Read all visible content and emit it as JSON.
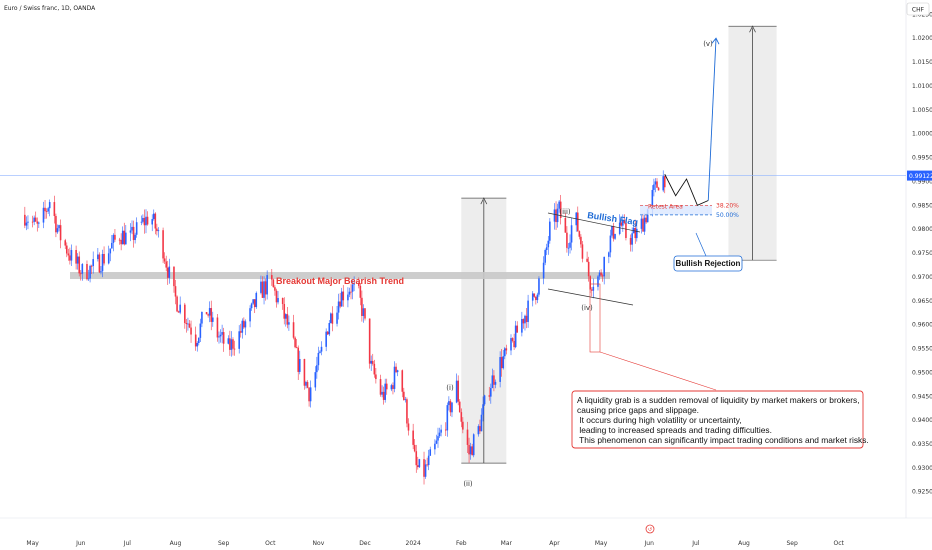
{
  "header": {
    "symbol": "Euro / Swiss franc, 1D, OANDA",
    "currency": "CHF"
  },
  "price_tag": {
    "value": 0.99122,
    "label": "0.99122"
  },
  "annotations": {
    "breakout": "Breakout Major Bearish Trend",
    "bullish_flag": "Bullish Flag",
    "retest": "Retest Area",
    "fib1": "38.20%",
    "fib2": "50.00%",
    "bullish_rejection": "Bullish Rejection",
    "waves": {
      "i": "(i)",
      "ii": "(ii)",
      "iii": "(iii)",
      "iv": "(iv)",
      "v": "(v)"
    },
    "note_lines": [
      "A liquidity grab is a sudden removal of liquidity by market makers or brokers,",
      "causing price gaps and slippage.",
      " It occurs during high volatility or uncertainty,",
      " leading to increased spreads and trading difficulties.",
      " This phenomenon can significantly impact trading conditions and market risks."
    ]
  },
  "colors": {
    "up": "#2962ff",
    "down": "#f23645",
    "accent": "#1e6bd6",
    "note_border": "#e53935"
  },
  "chart_data": {
    "type": "candlestick",
    "title": "Euro / Swiss franc, 1D, OANDA",
    "y_axis": {
      "position": "right",
      "min": 0.9195,
      "max": 1.028,
      "ticks": [
        0.925,
        0.93,
        0.935,
        0.94,
        0.945,
        0.95,
        0.955,
        0.96,
        0.965,
        0.97,
        0.975,
        0.98,
        0.985,
        0.99,
        0.995,
        1.0,
        1.005,
        1.01,
        1.015,
        1.02,
        1.025
      ],
      "tick_labels": [
        "0.92500",
        "0.93000",
        "0.93500",
        "0.94000",
        "0.94500",
        "0.95000",
        "0.95500",
        "0.96000",
        "0.96500",
        "0.97000",
        "0.97500",
        "0.98000",
        "0.98500",
        "0.99000",
        "0.99500",
        "1.00000",
        "1.00500",
        "1.01000",
        "1.01500",
        "1.02000",
        "1.02500"
      ]
    },
    "x_axis": {
      "labels": [
        "May",
        "Jun",
        "Jul",
        "Aug",
        "Sep",
        "Oct",
        "Nov",
        "Dec",
        "2024",
        "Feb",
        "Mar",
        "Apr",
        "May",
        "Jun",
        "Jul",
        "Aug",
        "Sep",
        "Oct"
      ],
      "dates": [
        "2023-05-01",
        "2023-06-01",
        "2023-07-01",
        "2023-08-01",
        "2023-09-01",
        "2023-10-01",
        "2023-11-01",
        "2023-12-01",
        "2024-01-01",
        "2024-02-01",
        "2024-03-01",
        "2024-04-01",
        "2024-05-01",
        "2024-06-01",
        "2024-07-01",
        "2024-08-01",
        "2024-09-01",
        "2024-10-01"
      ]
    },
    "path": [
      [
        "2023-04-26",
        0.983
      ],
      [
        "2023-05-05",
        0.98
      ],
      [
        "2023-05-12",
        0.986
      ],
      [
        "2023-05-18",
        0.979
      ],
      [
        "2023-05-26",
        0.974
      ],
      [
        "2023-06-02",
        0.971
      ],
      [
        "2023-06-09",
        0.972
      ],
      [
        "2023-06-16",
        0.974
      ],
      [
        "2023-06-26",
        0.979
      ],
      [
        "2023-07-03",
        0.978
      ],
      [
        "2023-07-10",
        0.981
      ],
      [
        "2023-07-16",
        0.983
      ],
      [
        "2023-07-24",
        0.976
      ],
      [
        "2023-07-31",
        0.966
      ],
      [
        "2023-08-07",
        0.962
      ],
      [
        "2023-08-14",
        0.957
      ],
      [
        "2023-08-21",
        0.963
      ],
      [
        "2023-08-28",
        0.958
      ],
      [
        "2023-09-04",
        0.955
      ],
      [
        "2023-09-11",
        0.958
      ],
      [
        "2023-09-18",
        0.962
      ],
      [
        "2023-09-25",
        0.967
      ],
      [
        "2023-10-01",
        0.969
      ],
      [
        "2023-10-06",
        0.965
      ],
      [
        "2023-10-12",
        0.96
      ],
      [
        "2023-10-19",
        0.952
      ],
      [
        "2023-10-26",
        0.946
      ],
      [
        "2023-11-02",
        0.953
      ],
      [
        "2023-11-08",
        0.961
      ],
      [
        "2023-11-15",
        0.966
      ],
      [
        "2023-11-22",
        0.968
      ],
      [
        "2023-11-27",
        0.966
      ],
      [
        "2023-11-30",
        0.962
      ],
      [
        "2023-12-05",
        0.951
      ],
      [
        "2023-12-12",
        0.945
      ],
      [
        "2023-12-18",
        0.947
      ],
      [
        "2023-12-22",
        0.952
      ],
      [
        "2023-12-28",
        0.941
      ],
      [
        "2024-01-03",
        0.93
      ],
      [
        "2024-01-08",
        0.929
      ],
      [
        "2024-01-15",
        0.934
      ],
      [
        "2024-01-22",
        0.94
      ],
      [
        "2024-01-29",
        0.947
      ],
      [
        "2024-02-02",
        0.938
      ],
      [
        "2024-02-06",
        0.933
      ],
      [
        "2024-02-12",
        0.938
      ],
      [
        "2024-02-19",
        0.947
      ],
      [
        "2024-02-26",
        0.952
      ],
      [
        "2024-03-04",
        0.955
      ],
      [
        "2024-03-11",
        0.961
      ],
      [
        "2024-03-18",
        0.965
      ],
      [
        "2024-03-25",
        0.972
      ],
      [
        "2024-03-29",
        0.98
      ],
      [
        "2024-04-04",
        0.984
      ],
      [
        "2024-04-09",
        0.977
      ],
      [
        "2024-04-14",
        0.983
      ],
      [
        "2024-04-19",
        0.976
      ],
      [
        "2024-04-24",
        0.969
      ],
      [
        "2024-04-30",
        0.97
      ],
      [
        "2024-05-06",
        0.977
      ],
      [
        "2024-05-12",
        0.982
      ],
      [
        "2024-05-18",
        0.978
      ],
      [
        "2024-05-24",
        0.979
      ],
      [
        "2024-05-30",
        0.983
      ],
      [
        "2024-06-03",
        0.987
      ],
      [
        "2024-06-07",
        0.99
      ],
      [
        "2024-06-11",
        0.991
      ]
    ],
    "lines": {
      "breakout_level": 0.97,
      "breakout_zone": [
        0.969,
        0.9705
      ],
      "current_price": 0.99122,
      "fib_382": 0.985,
      "fib_500": 0.983
    },
    "measure_boxes": [
      {
        "from_date": "2024-02-01",
        "to_date": "2024-03-01",
        "low": 0.931,
        "high": 0.9865
      },
      {
        "from_date": "2024-07-22",
        "to_date": "2024-08-22",
        "low": 0.9735,
        "high": 1.0225
      }
    ],
    "projection": [
      [
        "2024-06-11",
        0.9915
      ],
      [
        "2024-06-18",
        0.987
      ],
      [
        "2024-06-25",
        0.9905
      ],
      [
        "2024-07-02",
        0.985
      ],
      [
        "2024-07-09",
        0.986
      ],
      [
        "2024-07-14",
        1.02
      ]
    ]
  }
}
